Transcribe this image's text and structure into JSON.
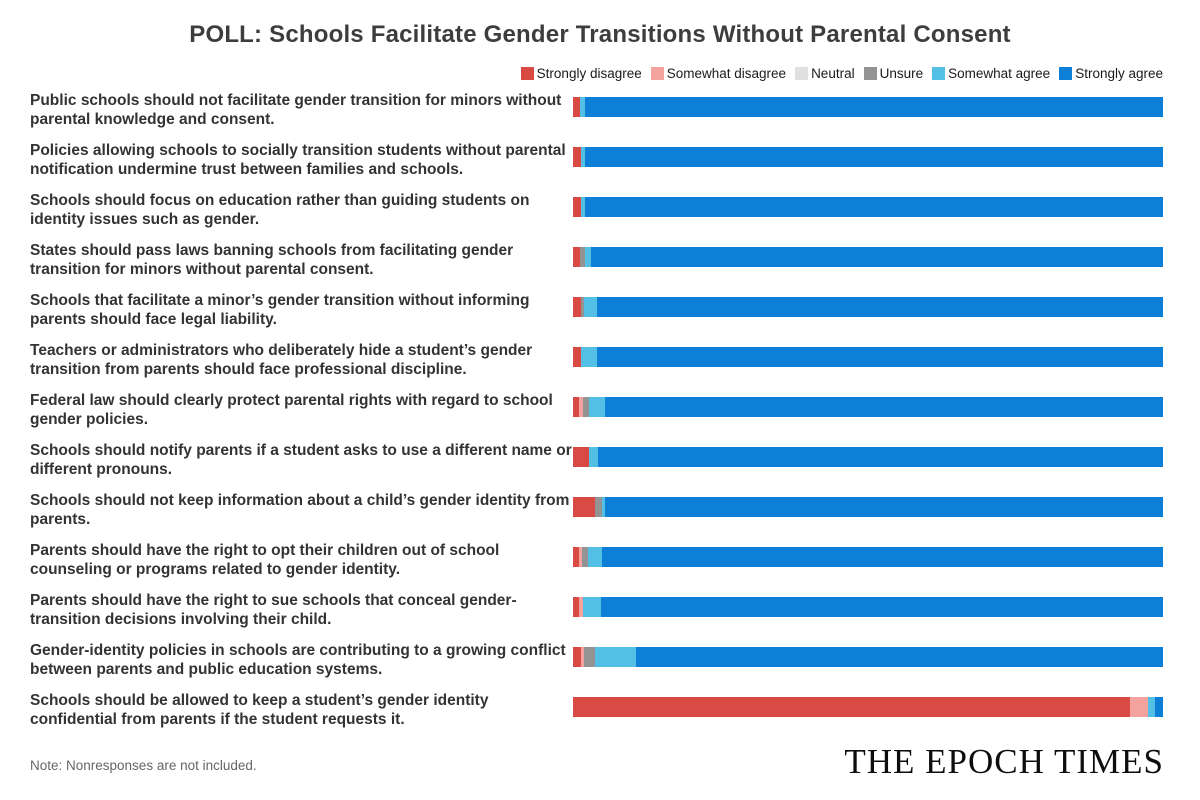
{
  "title": "POLL: Schools Facilitate Gender Transitions Without Parental Consent",
  "note": "Note: Nonresponses are not included.",
  "logo": "THE EPOCH TIMES",
  "chart_data": {
    "type": "bar",
    "orientation": "horizontal",
    "stacked": true,
    "unit": "percent",
    "xlim": [
      0,
      100
    ],
    "grid": false,
    "legend_position": "top-right",
    "title": "POLL: Schools Facilitate Gender Transitions Without Parental Consent",
    "categories": [
      "Public schools should not facilitate gender transition for minors without parental knowledge and consent.",
      "Policies allowing schools to socially transition students without parental notification undermine trust between families and schools.",
      "Schools should focus on education rather than guiding students on identity issues such as gender.",
      "States should pass laws banning schools from facilitating gender transition for minors without parental consent.",
      "Schools that facilitate a minor’s gender transition without informing parents should face legal liability.",
      "Teachers or administrators who deliberately hide a student’s gender transition from parents should face professional discipline.",
      "Federal law should clearly protect parental rights with regard to school gender policies.",
      "Schools should notify parents if a student asks to use a different name or different pronouns.",
      "Schools should not keep information about a child’s gender identity from parents.",
      "Parents should have the right to opt their children out of school counseling or programs related to gender identity.",
      "Parents should have the right to sue schools that conceal gender-transition decisions involving their child.",
      "Gender-identity policies in schools are contributing to a growing conflict between parents and public education systems.",
      "Schools should be allowed to keep a student’s gender identity confidential from parents if the student requests it."
    ],
    "series": [
      {
        "name": "Strongly disagree",
        "color": "#d94a45",
        "values": [
          1.2,
          1.3,
          1.3,
          1.2,
          1.4,
          1.4,
          1.0,
          2.7,
          3.7,
          1.0,
          1.0,
          1.4,
          94.4
        ]
      },
      {
        "name": "Somewhat disagree",
        "color": "#f4a29e",
        "values": [
          0,
          0,
          0,
          0,
          0,
          0,
          0.7,
          0,
          0,
          0.5,
          0.7,
          0.5,
          3.0
        ]
      },
      {
        "name": "Neutral",
        "color": "#e0e0e0",
        "values": [
          0,
          0,
          0,
          0,
          0,
          0,
          0,
          0,
          0,
          0,
          0,
          0,
          0
        ]
      },
      {
        "name": "Unsure",
        "color": "#939393",
        "values": [
          0,
          0,
          0,
          0.9,
          0.5,
          0,
          1.0,
          0,
          1.2,
          1.0,
          0,
          1.9,
          0
        ]
      },
      {
        "name": "Somewhat agree",
        "color": "#54bfe4",
        "values": [
          0.8,
          0.8,
          0.7,
          0.9,
          2.1,
          2.6,
          2.7,
          1.5,
          0.5,
          2.5,
          3.0,
          6.8,
          1.2
        ]
      },
      {
        "name": "Strongly agree",
        "color": "#0e7fd6",
        "values": [
          98.0,
          97.9,
          98.0,
          97.0,
          96.0,
          96.0,
          94.6,
          95.8,
          94.6,
          95.0,
          95.3,
          89.4,
          1.4
        ]
      }
    ]
  }
}
